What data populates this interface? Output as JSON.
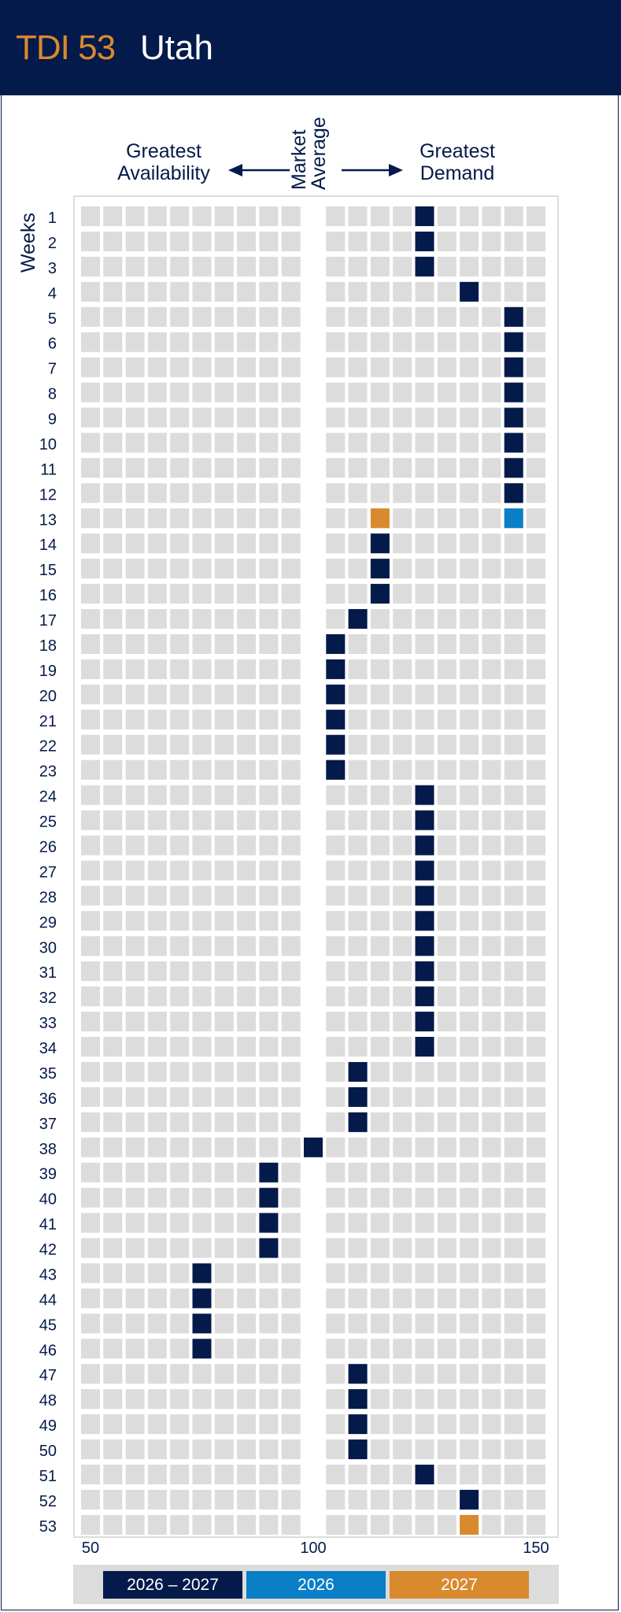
{
  "header": {
    "code": "TDI 53",
    "state": "Utah"
  },
  "labels": {
    "left": "Greatest\nAvailability",
    "middle": "Market\nAverage",
    "right": "Greatest\nDemand",
    "weeks": "Weeks"
  },
  "legend": [
    {
      "label": "2026 – 2027",
      "color": "#041a4a"
    },
    {
      "label": "2026",
      "color": "#0a7ec6"
    },
    {
      "label": "2027",
      "color": "#d98a2e"
    }
  ],
  "colors": {
    "primary": "#041a4a",
    "accent_blue": "#0a7ec6",
    "accent_orange": "#d98a2e",
    "cell": "#dcdcdc"
  },
  "chart_data": {
    "type": "heatmap",
    "x_ticks": [
      50,
      100,
      150
    ],
    "xlim": [
      50,
      150
    ],
    "market_average": 100,
    "weeks": [
      1,
      2,
      3,
      4,
      5,
      6,
      7,
      8,
      9,
      10,
      11,
      12,
      13,
      14,
      15,
      16,
      17,
      18,
      19,
      20,
      21,
      22,
      23,
      24,
      25,
      26,
      27,
      28,
      29,
      30,
      31,
      32,
      33,
      34,
      35,
      36,
      37,
      38,
      39,
      40,
      41,
      42,
      43,
      44,
      45,
      46,
      47,
      48,
      49,
      50,
      51,
      52,
      53
    ],
    "series": [
      {
        "name": "2026 – 2027",
        "values": [
          125,
          125,
          125,
          135,
          145,
          145,
          145,
          145,
          145,
          145,
          145,
          145,
          null,
          115,
          115,
          115,
          110,
          105,
          105,
          105,
          105,
          105,
          105,
          125,
          125,
          125,
          125,
          125,
          125,
          125,
          125,
          125,
          125,
          125,
          110,
          110,
          110,
          100,
          90,
          90,
          90,
          90,
          75,
          75,
          75,
          75,
          110,
          110,
          110,
          110,
          125,
          135,
          null
        ]
      },
      {
        "name": "2026",
        "values": [
          null,
          null,
          null,
          null,
          null,
          null,
          null,
          null,
          null,
          null,
          null,
          null,
          145,
          null,
          null,
          null,
          null,
          null,
          null,
          null,
          null,
          null,
          null,
          null,
          null,
          null,
          null,
          null,
          null,
          null,
          null,
          null,
          null,
          null,
          null,
          null,
          null,
          null,
          null,
          null,
          null,
          null,
          null,
          null,
          null,
          null,
          null,
          null,
          null,
          null,
          null,
          null,
          null
        ]
      },
      {
        "name": "2027",
        "values": [
          null,
          null,
          null,
          null,
          null,
          null,
          null,
          null,
          null,
          null,
          null,
          null,
          115,
          null,
          null,
          null,
          null,
          null,
          null,
          null,
          null,
          null,
          null,
          null,
          null,
          null,
          null,
          null,
          null,
          null,
          null,
          null,
          null,
          null,
          null,
          null,
          null,
          null,
          null,
          null,
          null,
          null,
          null,
          null,
          null,
          null,
          null,
          null,
          null,
          null,
          null,
          null,
          135
        ]
      }
    ]
  }
}
